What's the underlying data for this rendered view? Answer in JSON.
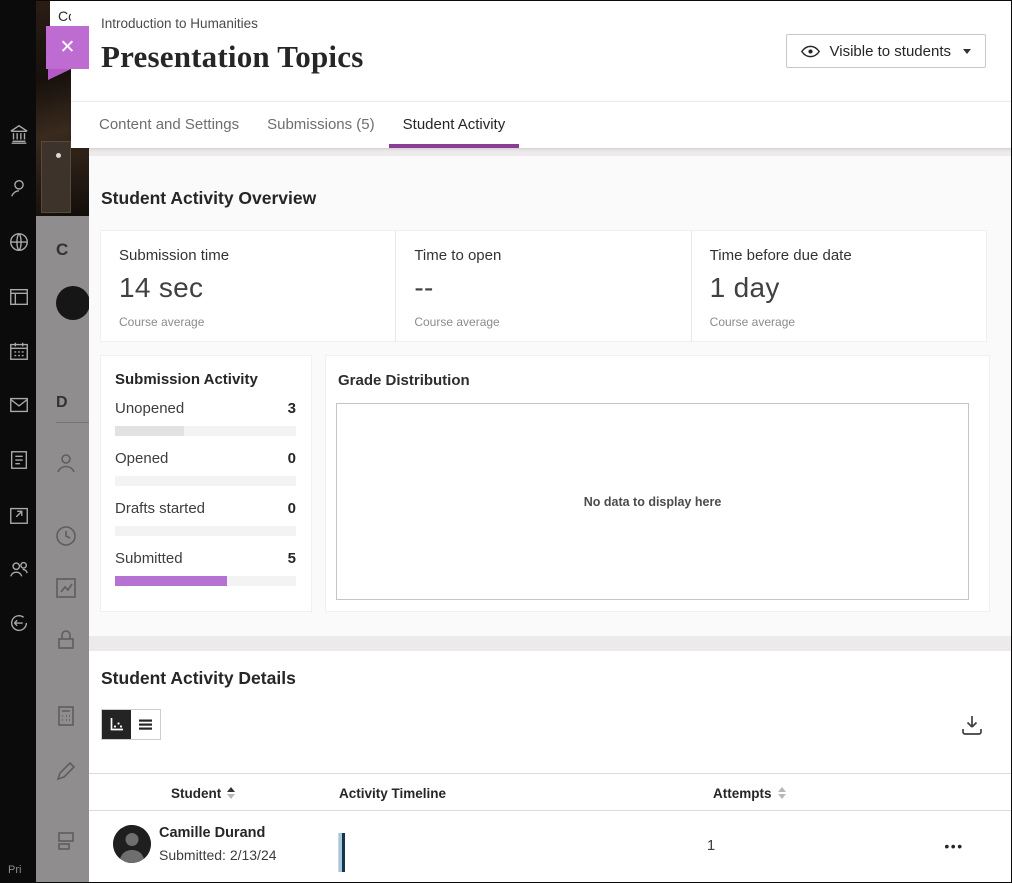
{
  "colors": {
    "accent_purple": "#8b3d96",
    "close_button_purple": "#bf6cd2",
    "submitted_bar_purple": "#b672d2",
    "unopened_bar_gray": "#e3e1e1"
  },
  "rail": {
    "icons": [
      "institution-icon",
      "profile-icon",
      "globe-icon",
      "courses-icon",
      "calendar-icon",
      "messages-icon",
      "gradebook-icon",
      "activity-icon",
      "groups-icon",
      "signout-icon"
    ],
    "privacy_label": "Pri"
  },
  "underlay": {
    "top_partial_text": "Co",
    "letter_c": "C",
    "letter_d": "D",
    "icons": [
      "person-icon",
      "clock-icon",
      "chart-icon",
      "lock-icon",
      "calculator-icon",
      "pencil-icon",
      "grade-icon"
    ]
  },
  "header": {
    "breadcrumb": "Introduction to Humanities",
    "title": "Presentation Topics",
    "visibility_button": {
      "label": "Visible to students"
    },
    "close_glyph": "✕"
  },
  "tabs": [
    {
      "label": "Content and Settings",
      "active": false
    },
    {
      "label": "Submissions (5)",
      "active": false
    },
    {
      "label": "Student Activity",
      "active": true
    }
  ],
  "overview": {
    "heading": "Student Activity Overview",
    "stats": [
      {
        "label": "Submission time",
        "value": "14 sec",
        "caption": "Course average"
      },
      {
        "label": "Time to open",
        "value": "--",
        "caption": "Course average"
      },
      {
        "label": "Time before due date",
        "value": "1 day",
        "caption": "Course average"
      }
    ],
    "submission_activity": {
      "heading": "Submission Activity",
      "rows": [
        {
          "label": "Unopened",
          "count": "3",
          "percent": 38,
          "color": "#e3e1e1"
        },
        {
          "label": "Opened",
          "count": "0",
          "percent": 0,
          "color": "#e3e1e1"
        },
        {
          "label": "Drafts started",
          "count": "0",
          "percent": 0,
          "color": "#e3e1e1"
        },
        {
          "label": "Submitted",
          "count": "5",
          "percent": 62,
          "color": "#b672d2"
        }
      ]
    },
    "grade_distribution": {
      "heading": "Grade Distribution",
      "empty_message": "No data to display here"
    }
  },
  "details": {
    "heading": "Student Activity Details",
    "menu_glyph": "•••",
    "table": {
      "columns": [
        {
          "label": "Student"
        },
        {
          "label": "Activity Timeline"
        },
        {
          "label": "Attempts"
        }
      ],
      "rows": [
        {
          "name": "Camille Durand",
          "status": "Submitted: 2/13/24",
          "attempts": "1"
        }
      ]
    }
  }
}
